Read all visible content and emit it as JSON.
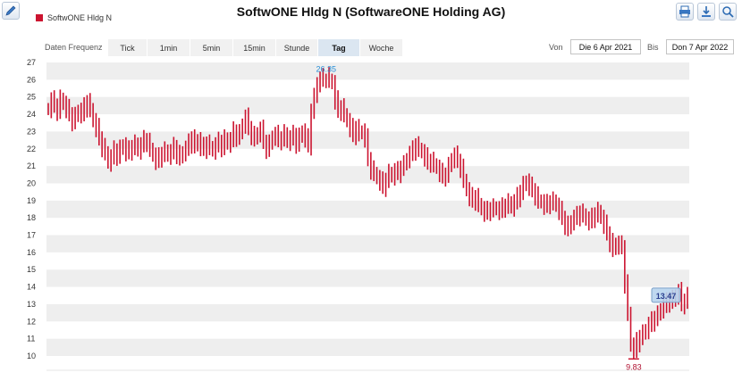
{
  "title": "SoftwONE Hldg N (SoftwareONE Holding AG)",
  "legend": {
    "label": "SoftwONE Hldg N",
    "color": "#cc1430"
  },
  "toolbar": {
    "edit_icon": "pencil-icon",
    "icons": [
      "print-icon",
      "download-icon",
      "zoom-icon"
    ]
  },
  "frequency": {
    "label": "Daten Frequenz",
    "options": [
      "Tick",
      "1min",
      "5min",
      "15min",
      "Stunde",
      "Tag",
      "Woche"
    ],
    "selected": "Tag"
  },
  "range": {
    "from_label": "Von",
    "from_value": "Die 6 Apr 2021",
    "to_label": "Bis",
    "to_value": "Don 7 Apr 2022"
  },
  "chart_data": {
    "type": "ohlc",
    "title": "SoftwONE Hldg N (SoftwareONE Holding AG)",
    "series_name": "SoftwONE Hldg N",
    "ylim": [
      10,
      27
    ],
    "yticks": [
      10,
      11,
      12,
      13,
      14,
      15,
      16,
      17,
      18,
      19,
      20,
      21,
      22,
      23,
      24,
      25,
      26,
      27
    ],
    "grid": "alternating-bands",
    "annotations": [
      {
        "label": "26.35",
        "value": 26.35,
        "kind": "max"
      },
      {
        "label": "9.83",
        "value": 9.83,
        "kind": "min"
      },
      {
        "label": "13.47",
        "value": 13.47,
        "kind": "last"
      }
    ],
    "closes": [
      24.3,
      24.8,
      24.5,
      24.2,
      24.9,
      24.6,
      24.3,
      24.0,
      23.6,
      23.9,
      24.2,
      24.0,
      24.4,
      24.7,
      24.3,
      23.6,
      23.2,
      22.6,
      22.1,
      21.8,
      21.2,
      21.5,
      21.9,
      21.6,
      22.0,
      22.2,
      21.8,
      21.9,
      22.1,
      22.3,
      21.9,
      22.2,
      22.5,
      22.4,
      22.0,
      21.6,
      21.3,
      21.5,
      21.7,
      21.9,
      21.6,
      21.8,
      22.1,
      21.7,
      21.5,
      21.8,
      22.0,
      22.3,
      22.6,
      22.2,
      22.5,
      22.1,
      22.0,
      22.3,
      22.1,
      21.9,
      22.2,
      22.4,
      22.1,
      22.6,
      22.3,
      22.5,
      23.0,
      22.7,
      22.9,
      23.4,
      23.8,
      23.2,
      22.8,
      22.6,
      22.9,
      23.1,
      22.4,
      22.0,
      22.3,
      22.7,
      22.8,
      22.5,
      22.6,
      22.9,
      22.4,
      22.6,
      22.8,
      22.3,
      22.7,
      23.0,
      22.6,
      22.2,
      24.2,
      25.0,
      25.8,
      26.0,
      26.1,
      26.2,
      26.0,
      25.8,
      24.8,
      24.2,
      24.4,
      24.0,
      23.6,
      23.2,
      22.8,
      23.2,
      22.9,
      23.0,
      22.6,
      21.4,
      20.8,
      20.6,
      20.3,
      20.1,
      19.8,
      20.2,
      20.6,
      20.4,
      20.7,
      20.6,
      20.9,
      21.1,
      21.4,
      21.7,
      21.9,
      22.2,
      22.0,
      21.8,
      21.5,
      21.2,
      21.3,
      21.1,
      20.9,
      20.6,
      20.4,
      20.5,
      21.0,
      21.4,
      21.6,
      21.3,
      20.9,
      20.2,
      19.6,
      19.2,
      19.0,
      19.2,
      18.8,
      18.5,
      18.3,
      18.4,
      18.5,
      18.6,
      18.5,
      18.4,
      18.6,
      18.7,
      18.9,
      18.6,
      18.9,
      19.2,
      19.5,
      19.9,
      20.1,
      19.8,
      19.6,
      19.3,
      19.0,
      18.9,
      18.7,
      18.8,
      18.9,
      19.0,
      18.7,
      18.4,
      18.0,
      17.6,
      17.4,
      17.8,
      18.0,
      18.1,
      18.3,
      18.2,
      17.9,
      17.8,
      18.0,
      18.2,
      18.4,
      18.0,
      17.6,
      17.1,
      16.6,
      16.2,
      16.5,
      16.4,
      16.3,
      14.2,
      12.5,
      10.6,
      10.3,
      10.8,
      11.1,
      11.3,
      11.5,
      11.8,
      12.0,
      12.2,
      12.4,
      12.7,
      12.9,
      13.1,
      13.3,
      13.2,
      13.5,
      13.7,
      13.0,
      13.2,
      13.47
    ]
  }
}
